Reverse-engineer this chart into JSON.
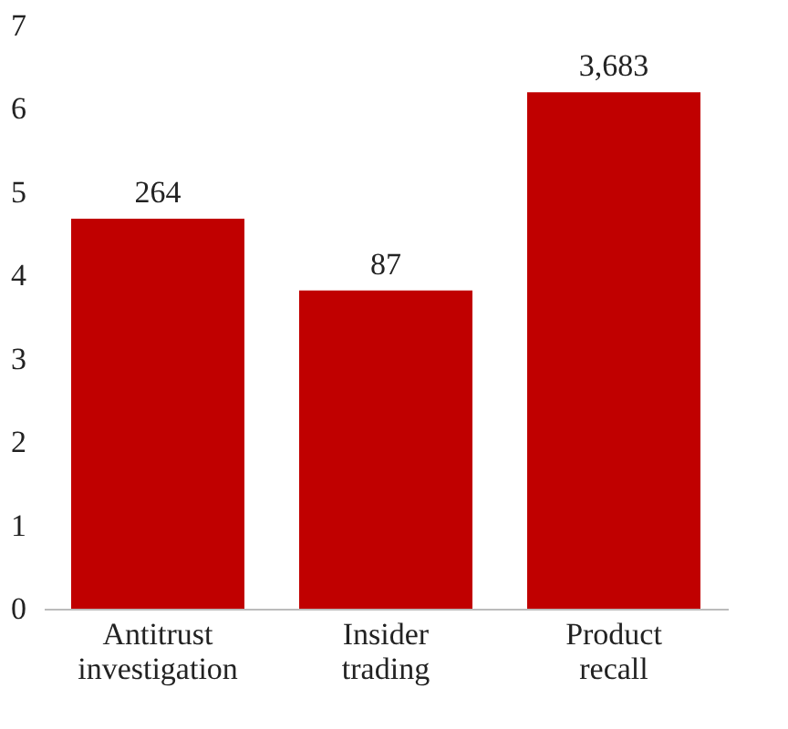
{
  "chart_data": {
    "type": "bar",
    "categories": [
      "Antitrust investigation",
      "Insider trading",
      "Product recall"
    ],
    "values": [
      4.68,
      3.82,
      6.2
    ],
    "annotations": [
      {
        "text": "264",
        "x": "Antitrust investigation",
        "y": 4.68
      },
      {
        "text": "87",
        "x": "Insider trading",
        "y": 3.82
      },
      {
        "text": "3,683",
        "x": "Product recall",
        "y": 6.2
      }
    ],
    "color": "#c00000",
    "ylim": [
      0,
      7
    ],
    "yticks": [
      0,
      1,
      2,
      3,
      4,
      5,
      6,
      7
    ],
    "grid": false
  }
}
